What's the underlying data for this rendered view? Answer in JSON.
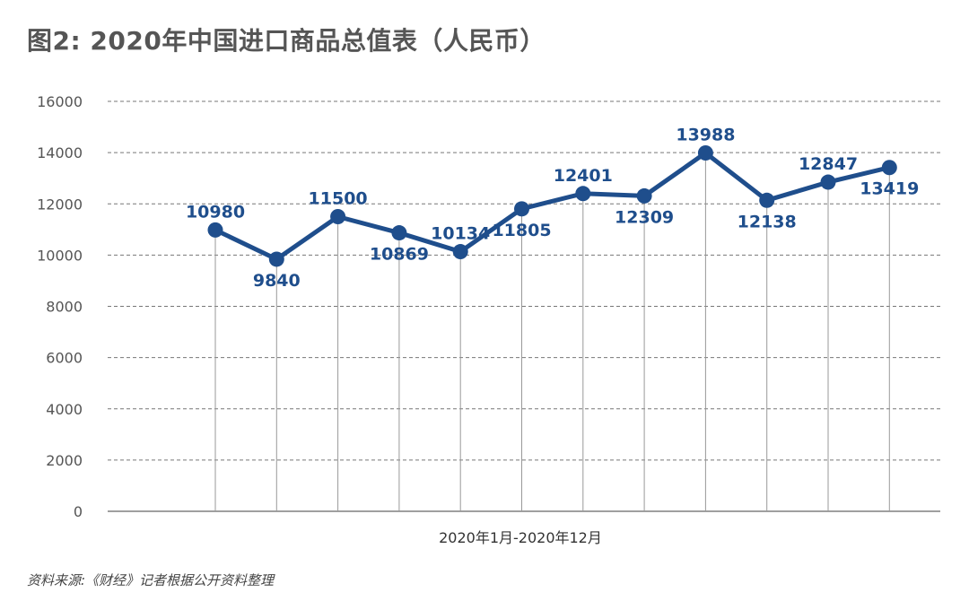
{
  "title": "图2: 2020年中国进口商品总值表（人民币）",
  "source": "资料来源:《财经》记者根据公开资料整理",
  "chart_data": {
    "type": "line",
    "x": [
      1,
      2,
      3,
      4,
      5,
      6,
      7,
      8,
      9,
      10,
      11,
      12
    ],
    "values": [
      10980,
      9840,
      11500,
      10869,
      10134,
      11805,
      12401,
      12309,
      13988,
      12138,
      12847,
      13419
    ],
    "value_labels": [
      "10980",
      "9840",
      "11500",
      "10869",
      "10134",
      "11805",
      "12401",
      "12309",
      "13988",
      "12138",
      "12847",
      "13419"
    ],
    "label_positions": [
      "above",
      "below",
      "above",
      "below",
      "above",
      "below",
      "above",
      "below",
      "above",
      "below",
      "above",
      "below"
    ],
    "xlabel": "2020年1月-2020年12月",
    "ylabel": "",
    "ylim": [
      0,
      16000
    ],
    "yticks": [
      0,
      2000,
      4000,
      6000,
      8000,
      10000,
      12000,
      14000,
      16000
    ],
    "ytick_labels": [
      "0",
      "2000",
      "4000",
      "6000",
      "8000",
      "10000",
      "12000",
      "14000",
      "16000"
    ],
    "grid": true,
    "color": "#1f4e8c"
  }
}
